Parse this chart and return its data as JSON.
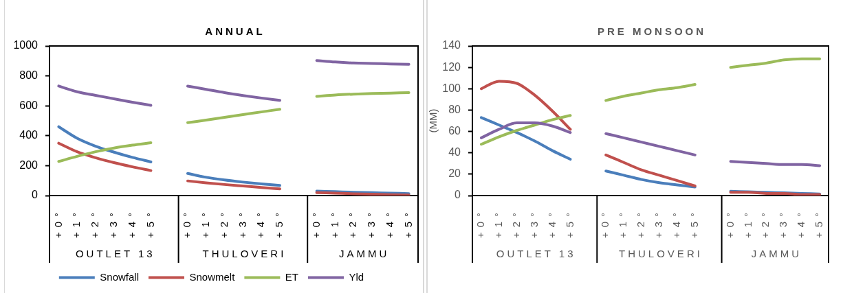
{
  "chart_data": [
    {
      "type": "line",
      "title": "ANNUAL",
      "categories": [
        "+0°",
        "+1°",
        "+2°",
        "+3°",
        "+4°",
        "+5°",
        null,
        "+0°",
        "+1°",
        "+2°",
        "+3°",
        "+4°",
        "+5°",
        null,
        "+0°",
        "+1°",
        "+2°",
        "+3°",
        "+4°",
        "+5°"
      ],
      "series": [
        {
          "name": "Snowfall",
          "color": "#4a7ebb",
          "values": [
            460,
            383,
            330,
            290,
            255,
            225,
            null,
            148,
            122,
            104,
            90,
            78,
            68,
            null,
            30,
            26,
            22,
            19,
            16,
            13
          ]
        },
        {
          "name": "Snowmelt",
          "color": "#c0504d",
          "values": [
            350,
            293,
            253,
            220,
            192,
            167,
            null,
            98,
            85,
            74,
            64,
            54,
            45,
            null,
            20,
            16,
            12,
            9,
            6,
            4
          ]
        },
        {
          "name": "ET",
          "color": "#9bbb59",
          "values": [
            228,
            262,
            293,
            318,
            337,
            353,
            null,
            487,
            505,
            523,
            541,
            559,
            577,
            null,
            663,
            672,
            678,
            682,
            685,
            688
          ]
        },
        {
          "name": "Yld",
          "color": "#8064a2",
          "values": [
            732,
            694,
            670,
            647,
            624,
            603,
            null,
            732,
            710,
            688,
            669,
            652,
            636,
            null,
            903,
            893,
            886,
            883,
            880,
            877
          ]
        }
      ],
      "ylim": [
        0,
        1000
      ],
      "yticks": [
        0,
        200,
        400,
        600,
        800,
        1000
      ],
      "legend": "bottom",
      "annotations": [
        "OUTLET 13",
        "THULOVERI",
        "JAMMU"
      ]
    },
    {
      "type": "line",
      "title": "PRE MONSOON",
      "ylabel": "(MM)",
      "categories": [
        "+0°",
        "+1°",
        "+2°",
        "+3°",
        "+4°",
        "+5°",
        null,
        "+0°",
        "+1°",
        "+2°",
        "+3°",
        "+4°",
        "+5°",
        null,
        "+0°",
        "+1°",
        "+2°",
        "+3°",
        "+4°",
        "+5°"
      ],
      "series": [
        {
          "color": "#4a7ebb",
          "values": [
            73,
            66,
            59,
            51,
            42,
            34,
            null,
            23,
            19,
            15,
            12,
            10,
            8,
            null,
            4,
            3.5,
            3,
            2.5,
            2,
            1.5
          ]
        },
        {
          "color": "#c0504d",
          "values": [
            100,
            107,
            105,
            94,
            79,
            62,
            null,
            38,
            31,
            24,
            19,
            14,
            9,
            null,
            3,
            3,
            2,
            2,
            1,
            1
          ]
        },
        {
          "color": "#9bbb59",
          "values": [
            48,
            55,
            61,
            66,
            71,
            75,
            null,
            89,
            93,
            96,
            99,
            101,
            104,
            null,
            120,
            122,
            124,
            127,
            128,
            128
          ]
        },
        {
          "color": "#8064a2",
          "values": [
            54,
            62,
            68,
            68,
            65,
            59,
            null,
            58,
            54,
            50,
            46,
            42,
            38,
            null,
            32,
            31,
            30,
            29,
            29,
            28
          ]
        }
      ],
      "ylim": [
        0,
        140
      ],
      "yticks": [
        0,
        20,
        40,
        60,
        80,
        100,
        120,
        140
      ],
      "annotations": [
        "OUTLET 13",
        "THULOVERI",
        "JAMMU"
      ]
    }
  ]
}
